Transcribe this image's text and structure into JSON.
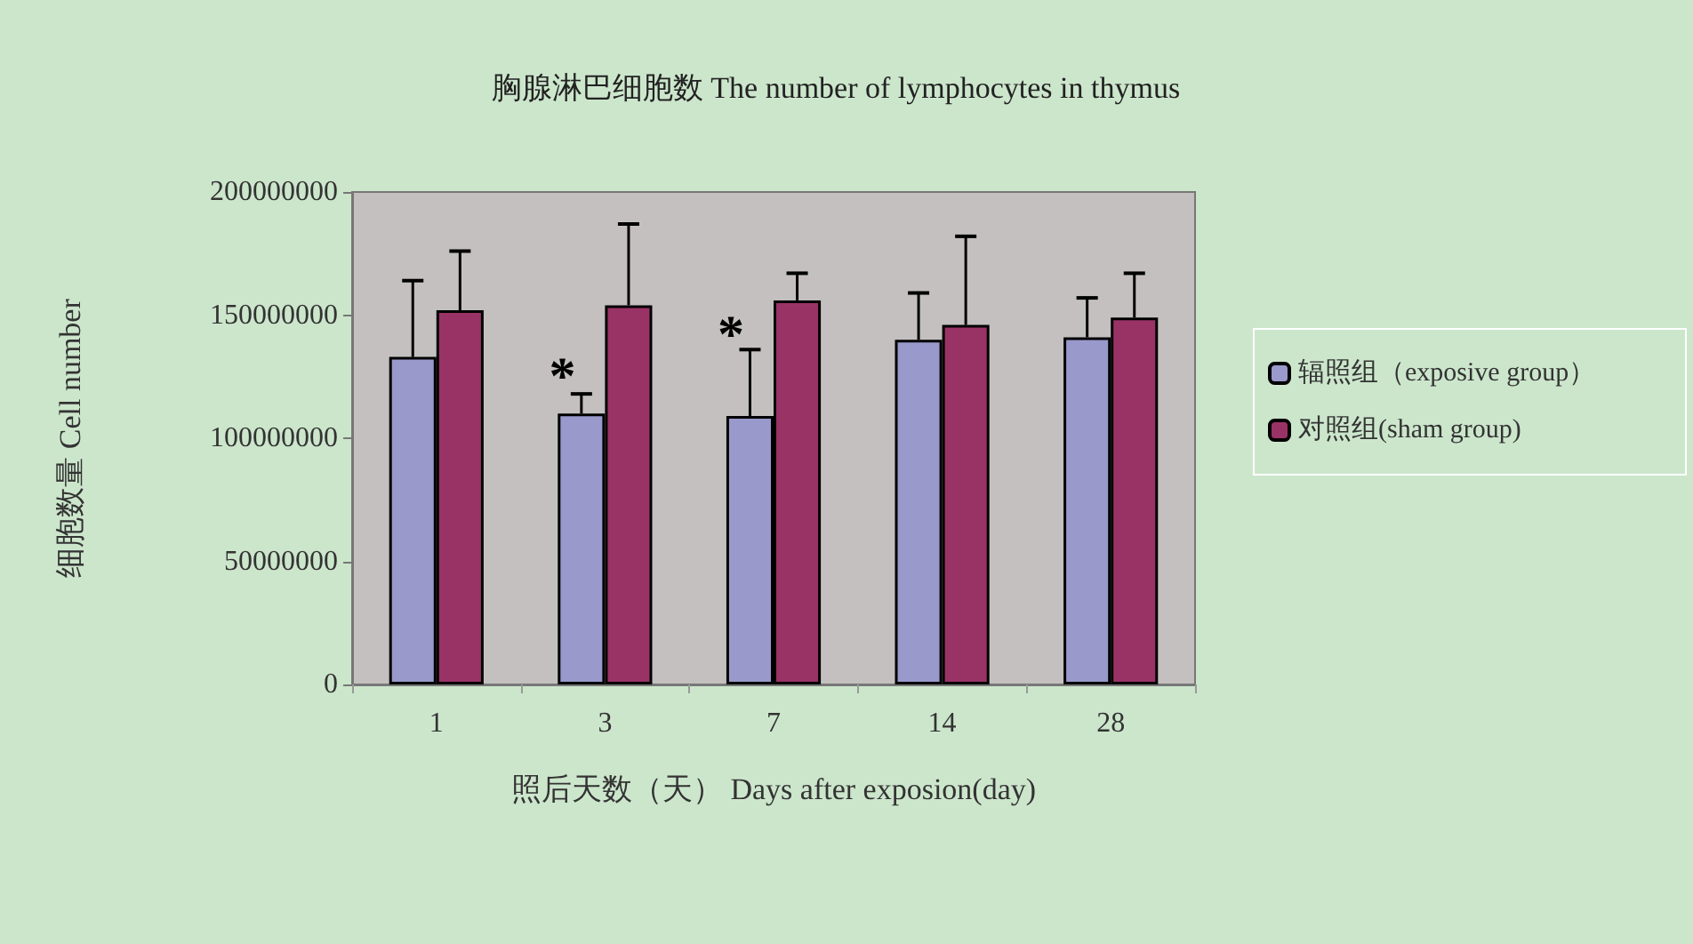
{
  "chart_data": {
    "type": "bar",
    "title": "胸腺淋巴细胞数 The number of lymphocytes in thymus",
    "xlabel": "照后天数（天） Days after exposion(day)",
    "ylabel": "细胞数量 Cell number",
    "categories": [
      "1",
      "3",
      "7",
      "14",
      "28"
    ],
    "series": [
      {
        "name": "辐照组（exposive group）",
        "color": "#9999cc",
        "values": [
          133000000,
          110000000,
          109000000,
          140000000,
          141000000
        ],
        "errors": [
          [
            133000000,
            164000000
          ],
          [
            110000000,
            118000000
          ],
          [
            109000000,
            136000000
          ],
          [
            140000000,
            159000000
          ],
          [
            141000000,
            157000000
          ]
        ]
      },
      {
        "name": "对照组(sham group)",
        "color": "#993366",
        "values": [
          152000000,
          154000000,
          156000000,
          146000000,
          149000000
        ],
        "errors": [
          [
            152000000,
            176000000
          ],
          [
            154000000,
            187000000
          ],
          [
            156000000,
            167000000
          ],
          [
            146000000,
            182000000
          ],
          [
            149000000,
            167000000
          ]
        ]
      }
    ],
    "ylim": [
      0,
      200000000
    ],
    "yticks": [
      0,
      50000000,
      100000000,
      150000000,
      200000000
    ],
    "grid": false,
    "legend": "right",
    "annotations": [
      {
        "text": "*",
        "x": "3",
        "y": 125000000
      },
      {
        "text": "*",
        "x": "7",
        "y": 142000000
      }
    ]
  }
}
